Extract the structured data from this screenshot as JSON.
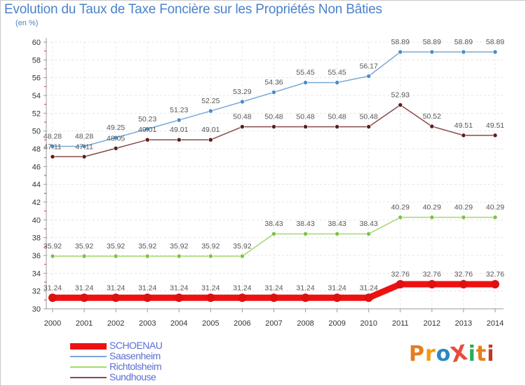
{
  "title": "Evolution du Taux de Taxe Foncière sur les Propriétés Non Bâties",
  "subtitle": "(en %)",
  "brand": {
    "text": "ProXiti",
    "colors": [
      "#e67e22",
      "#f39c12",
      "#2e86c1",
      "#e74c3c",
      "#27ae60",
      "#e67e22",
      "#c0392b"
    ]
  },
  "chart_data": {
    "type": "line",
    "x": [
      "2000",
      "2001",
      "2002",
      "2003",
      "2004",
      "2005",
      "2006",
      "2007",
      "2008",
      "2009",
      "2010",
      "2011",
      "2012",
      "2013",
      "2014"
    ],
    "ylim": [
      30,
      60
    ],
    "yticks": [
      30,
      32,
      34,
      36,
      38,
      40,
      42,
      44,
      46,
      48,
      50,
      52,
      54,
      56,
      58,
      60
    ],
    "grid": true,
    "legend_position": "bottom-left",
    "series": [
      {
        "name": "SCHOENAU",
        "color": "#ee1111",
        "marker": "#dd1111",
        "width": 9,
        "values": [
          31.24,
          31.24,
          31.24,
          31.24,
          31.24,
          31.24,
          31.24,
          31.24,
          31.24,
          31.24,
          31.24,
          32.76,
          32.76,
          32.76,
          32.76
        ],
        "labels": [
          "31.24",
          "31.24",
          "31.24",
          "31.24",
          "31.24",
          "31.24",
          "31.24",
          "31.24",
          "31.24",
          "31.24",
          "31.24",
          "32.76",
          "32.76",
          "32.76",
          "32.76"
        ]
      },
      {
        "name": "Saasenheim",
        "color": "#7ba7d7",
        "marker": "#4a8cc7",
        "width": 1.5,
        "values": [
          48.28,
          48.28,
          49.25,
          50.23,
          51.23,
          52.25,
          53.29,
          54.36,
          55.45,
          55.45,
          56.17,
          58.89,
          58.89,
          58.89,
          58.89
        ],
        "labels": [
          "48.28",
          "48.28",
          "49.25",
          "50.23",
          "51.23",
          "52.25",
          "53.29",
          "54.36",
          "55.45",
          "55.45",
          "56.17",
          "58.89",
          "58.89",
          "58.89",
          "58.89"
        ]
      },
      {
        "name": "Richtolsheim",
        "color": "#a6d86e",
        "marker": "#7cc244",
        "width": 1.5,
        "values": [
          35.92,
          35.92,
          35.92,
          35.92,
          35.92,
          35.92,
          35.92,
          38.43,
          38.43,
          38.43,
          38.43,
          40.29,
          40.29,
          40.29,
          40.29
        ],
        "labels": [
          "35.92",
          "35.92",
          "35.92",
          "35.92",
          "35.92",
          "35.92",
          "35.92",
          "38.43",
          "38.43",
          "38.43",
          "38.43",
          "40.29",
          "40.29",
          "40.29",
          "40.29"
        ]
      },
      {
        "name": "Sundhouse",
        "color": "#8a4a4a",
        "marker": "#5a1f1f",
        "width": 1.5,
        "values": [
          47.11,
          47.11,
          48.05,
          49.01,
          49.01,
          49.01,
          50.48,
          50.48,
          50.48,
          50.48,
          50.48,
          52.93,
          50.52,
          49.51,
          49.51
        ],
        "labels": [
          "47.11",
          "47.11",
          "48.05",
          "49.01",
          "49.01",
          "49.01",
          "50.48",
          "50.48",
          "50.48",
          "50.48",
          "50.48",
          "52.93",
          "50.52",
          "49.51",
          "49.51"
        ]
      }
    ]
  }
}
